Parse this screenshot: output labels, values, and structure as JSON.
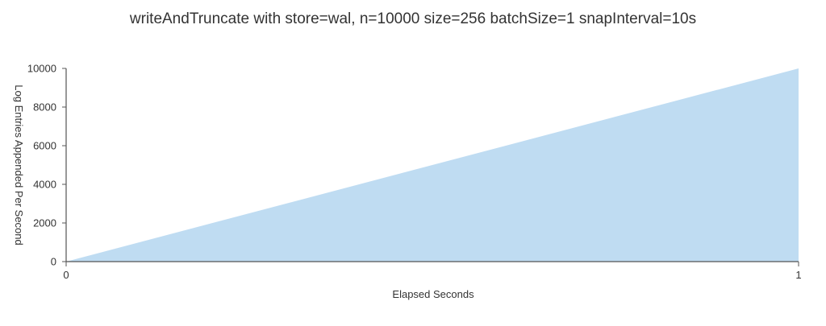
{
  "chart_data": {
    "type": "area",
    "title": "writeAndTruncate with store=wal, n=10000 size=256 batchSize=1 snapInterval=10s",
    "xlabel": "Elapsed Seconds",
    "ylabel": "Log Entries Appended Per Second",
    "x": [
      0,
      1
    ],
    "series": [
      {
        "values": [
          0,
          10000
        ],
        "color": "#bfdcf2"
      }
    ],
    "xlim": [
      0,
      1
    ],
    "ylim": [
      0,
      10000
    ],
    "x_ticks": [
      0,
      1
    ],
    "y_ticks": [
      0,
      2000,
      4000,
      6000,
      8000,
      10000
    ],
    "grid": false,
    "legend": "none"
  },
  "colors": {
    "area_fill": "#bfdcf2",
    "axis": "#555555",
    "text": "#333333"
  }
}
